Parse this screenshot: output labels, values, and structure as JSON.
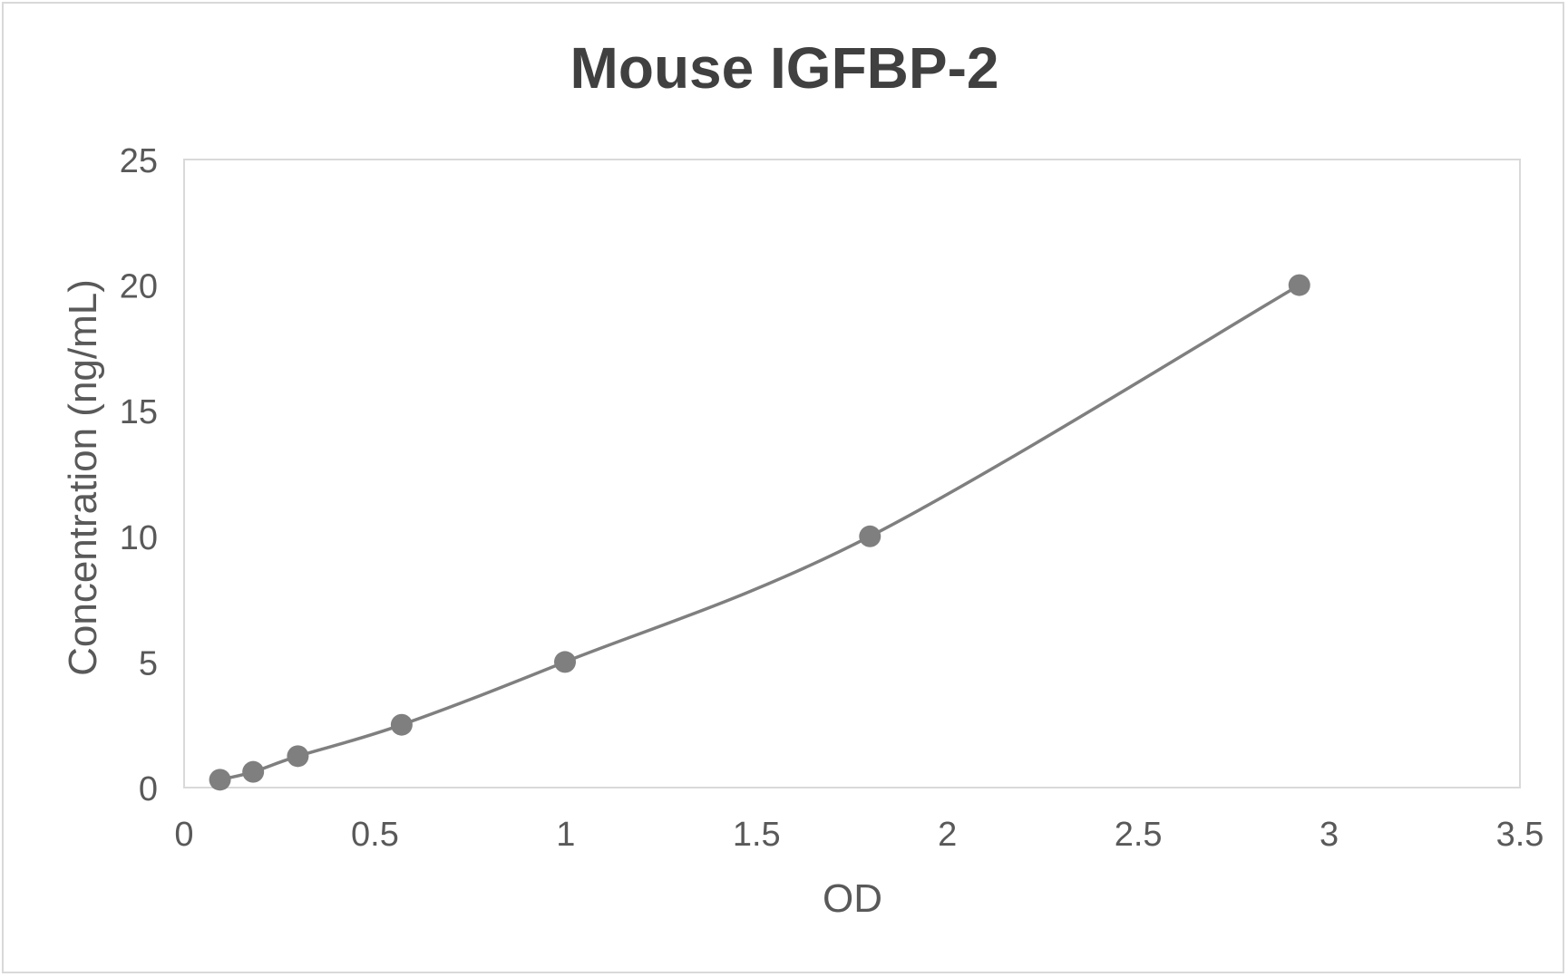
{
  "chart_data": {
    "type": "scatter",
    "title": "Mouse IGFBP-2",
    "xlabel": "OD",
    "ylabel": "Concentration (ng/mL)",
    "xlim": [
      0,
      3.5
    ],
    "ylim": [
      0,
      25
    ],
    "xticks": [
      0,
      0.5,
      1,
      1.5,
      2,
      2.5,
      3,
      3.5
    ],
    "xtick_labels": [
      "0",
      "0.5",
      "1",
      "1.5",
      "2",
      "2.5",
      "3",
      "3.5"
    ],
    "yticks": [
      0,
      5,
      10,
      15,
      20,
      25
    ],
    "ytick_labels": [
      "0",
      "5",
      "10",
      "15",
      "20",
      "25"
    ],
    "grid": false,
    "legend": null,
    "line_style": "smoothed line with markers",
    "series": [
      {
        "name": "Mouse IGFBP-2",
        "color": "#7f7f7f",
        "x": [
          0.094,
          0.181,
          0.298,
          0.57,
          0.998,
          1.797,
          2.922
        ],
        "y": [
          0.3125,
          0.625,
          1.25,
          2.5,
          5,
          10,
          20
        ]
      }
    ]
  },
  "colors": {
    "series": "#7f7f7f",
    "title": "#404040",
    "text": "#595959",
    "border": "#d9d9d9"
  }
}
